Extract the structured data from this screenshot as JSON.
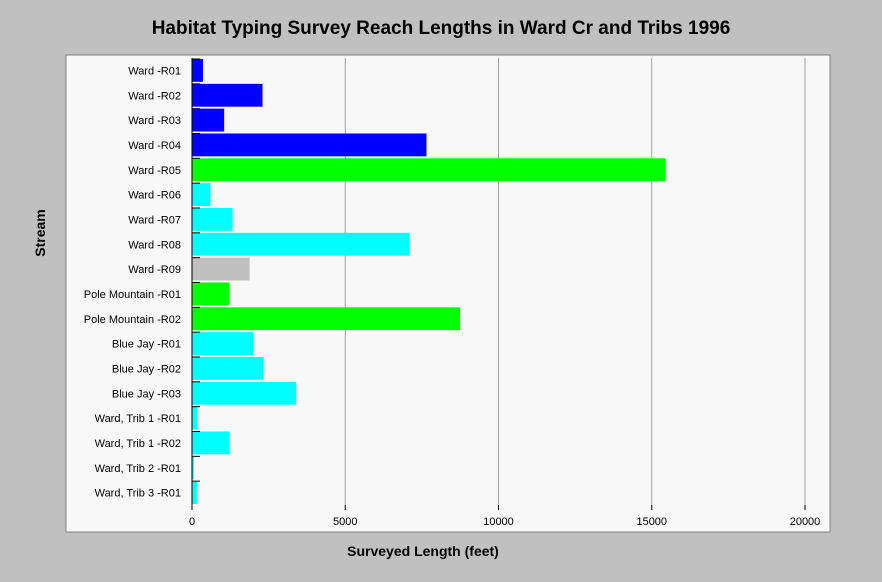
{
  "chart_data": {
    "type": "bar",
    "orientation": "horizontal",
    "title": "Habitat Typing Survey Reach Lengths in Ward Cr and Tribs 1996",
    "xlabel": "Surveyed Length (feet)",
    "ylabel": "Stream",
    "xlim": [
      0,
      20000
    ],
    "xticks": [
      "0",
      "5000",
      "10000",
      "15000",
      "20000"
    ],
    "xtick_values": [
      0,
      5000,
      10000,
      15000,
      20000
    ],
    "grid": "vertical",
    "categories": [
      "Ward -R01",
      "Ward -R02",
      "Ward -R03",
      "Ward -R04",
      "Ward -R05",
      "Ward -R06",
      "Ward -R07",
      "Ward -R08",
      "Ward -R09",
      "Pole Mountain -R01",
      "Pole Mountain -R02",
      "Blue Jay -R01",
      "Blue Jay -R02",
      "Blue Jay -R03",
      "Ward, Trib 1 -R01",
      "Ward, Trib 1 -R02",
      "Ward, Trib 2 -R01",
      "Ward, Trib 3 -R01"
    ],
    "values": [
      360,
      2300,
      1050,
      7650,
      15450,
      600,
      1320,
      7100,
      1880,
      1220,
      8750,
      2000,
      2330,
      3400,
      180,
      1230,
      60,
      160
    ],
    "bar_colors": [
      "#0000ff",
      "#0000ff",
      "#0000ff",
      "#0000ff",
      "#00ff00",
      "#00ffff",
      "#00ffff",
      "#00ffff",
      "#c0c0c0",
      "#00ff00",
      "#00ff00",
      "#00ffff",
      "#00ffff",
      "#00ffff",
      "#00ffff",
      "#00ffff",
      "#00ffff",
      "#00ffff"
    ],
    "colors": {
      "background": "#c0c0c0",
      "plot_background": "#f8f8f8",
      "grid": "#a0a0a0"
    }
  }
}
